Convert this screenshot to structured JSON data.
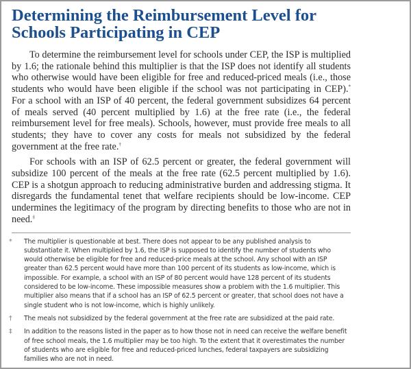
{
  "title": "Determining the Reimbursement Level for Schools Participating in CEP",
  "paragraphs": [
    {
      "text": "To determine the reimbursement level for schools under CEP, the ISP is multiplied by 1.6; the rationale behind this multiplier is that the ISP does not identify all students who otherwise would have been eligible for free and reduced-priced meals (i.e., those students who would have been eligible if the school was not participating in CEP).",
      "mark1": "*",
      "text2": " For a school with an ISP of 40 percent, the federal government subsidizes 64 percent of meals served (40 percent multiplied by 1.6) at the free rate (i.e., the federal reimbursement level for free meals). Schools, however, must provide free meals to all students; they have to cover any costs for meals not subsidized by the federal government at the free rate.",
      "mark2": "†"
    },
    {
      "text": "For schools with an ISP of 62.5 percent or greater, the federal government will subsidize 100 percent of the meals at the free rate (62.5 percent multiplied by 1.6). CEP is a shotgun approach to reducing administrative burden and addressing stigma. It disregards the fundamental tenet that welfare recipients should be low-income. CEP undermines the legitimacy of the program by directing benefits to those who are not in need.",
      "mark": "‡"
    }
  ],
  "footnotes": [
    {
      "mark": "*",
      "text": "The multiplier is questionable at best. There does not appear to be any published analysis to substantiate it. When multiplied by 1.6, the ISP is supposed to identify the number of students who would otherwise be eligible for free and reduced-price meals at the school. Any school with an ISP greater than 62.5 percent would have more than 100 percent of its students as low-income, which is impossible. For example, a school with an ISP of 80 percent would have 128 percent of its students considered to be low-income. These impossible measures show a problem with the 1.6 multiplier. This multiplier also means that if a school has an ISP of 62.5 percent or greater, that school does not have a single student who is not low-income, which is highly unlikely."
    },
    {
      "mark": "†",
      "text": "The meals not subsidized by the federal government at the free rate are subsidized at the paid rate."
    },
    {
      "mark": "‡",
      "text": "In addition to the reasons listed in the paper as to how those not in need can receive the welfare benefit of free school meals, the 1.6 multiplier may be too high. To the extent that it overestimates the number of students who are eligible for free and reduced-priced lunches, federal taxpayers are subsidizing families who are not in need."
    }
  ],
  "colors": {
    "title": "#1b4f8e",
    "border": "#9a9a9a"
  }
}
